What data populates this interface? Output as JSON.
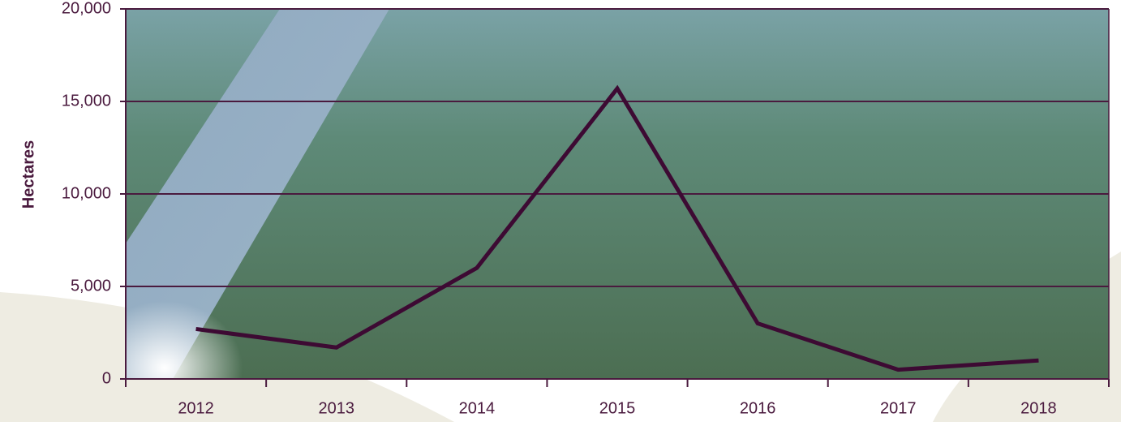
{
  "chart_data": {
    "type": "line",
    "y_label": "Hectares",
    "categories": [
      "2012",
      "2013",
      "2014",
      "2015",
      "2016",
      "2017",
      "2018"
    ],
    "series": [
      {
        "name": "Hectares",
        "color": "#3d0a33",
        "values": [
          2700,
          1700,
          6000,
          15700,
          3000,
          500,
          1000
        ]
      }
    ],
    "ylim": [
      0,
      20000
    ],
    "yticks": [
      0,
      {
        "value": 5000,
        "label": "5,000"
      },
      {
        "value": 10000,
        "label": "10,000"
      },
      {
        "value": 15000,
        "label": "15,000"
      },
      {
        "value": 20000,
        "label": "20,000"
      }
    ],
    "grid": true,
    "grid_color": "#4a1a3e"
  }
}
